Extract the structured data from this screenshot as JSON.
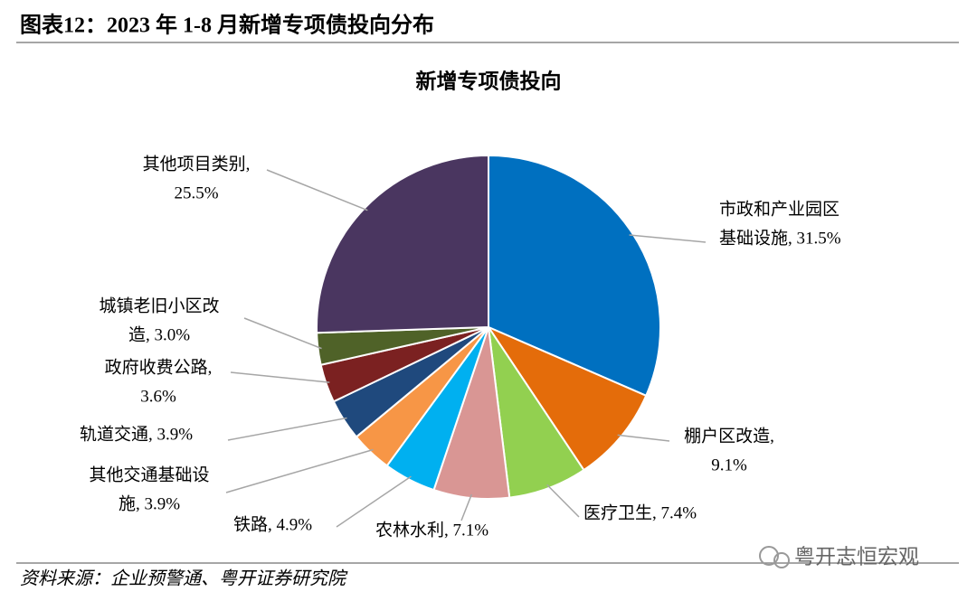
{
  "header": {
    "title": "图表12：2023 年 1-8 月新增专项债投向分布"
  },
  "chart_data": {
    "type": "pie",
    "title": "新增专项债投向",
    "labels": [
      [
        "市政和产业园区",
        "基础设施, 31.5%"
      ],
      [
        "棚户区改造,",
        "9.1%"
      ],
      [
        "医疗卫生, 7.4%"
      ],
      [
        "农林水利, 7.1%"
      ],
      [
        "铁路, 4.9%"
      ],
      [
        "其他交通基础设",
        "施, 3.9%"
      ],
      [
        "轨道交通, 3.9%"
      ],
      [
        "政府收费公路,",
        "3.6%"
      ],
      [
        "城镇老旧小区改",
        "造, 3.0%"
      ],
      [
        "其他项目类别,",
        "25.5%"
      ]
    ],
    "values": [
      31.5,
      9.1,
      7.4,
      7.1,
      4.9,
      3.9,
      3.9,
      3.6,
      3.0,
      25.5
    ],
    "colors": [
      "#0070c0",
      "#e46c0a",
      "#92d050",
      "#d99694",
      "#00b0f0",
      "#f79646",
      "#1f497d",
      "#7b2121",
      "#4f6228",
      "#4a3660"
    ]
  },
  "footer": {
    "source": "资料来源：企业预警通、粤开证券研究院",
    "watermark": "粤开志恒宏观"
  }
}
